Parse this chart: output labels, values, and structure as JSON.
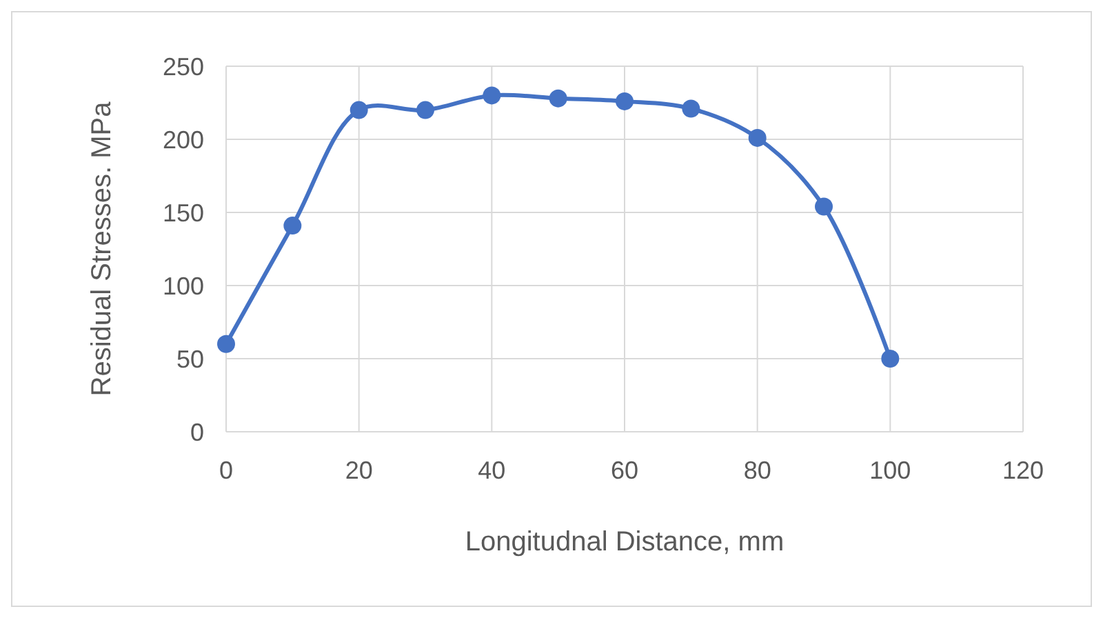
{
  "chart_data": {
    "type": "line",
    "xlabel": "Longitudnal Distance, mm",
    "ylabel": "Residual Stresses. MPa",
    "x": [
      0,
      10,
      20,
      30,
      40,
      50,
      60,
      70,
      80,
      90,
      100
    ],
    "series": [
      {
        "color": "#4472c4",
        "values": [
          60,
          141,
          220,
          220,
          230,
          228,
          226,
          221,
          201,
          154,
          50
        ]
      }
    ],
    "xlim": [
      0,
      120
    ],
    "xticks": [
      0,
      20,
      40,
      60,
      80,
      100,
      120
    ],
    "ylim": [
      0,
      250
    ],
    "yticks": [
      0,
      50,
      100,
      150,
      200,
      250
    ],
    "grid": true,
    "marker": "circle",
    "line_style": "solid"
  }
}
